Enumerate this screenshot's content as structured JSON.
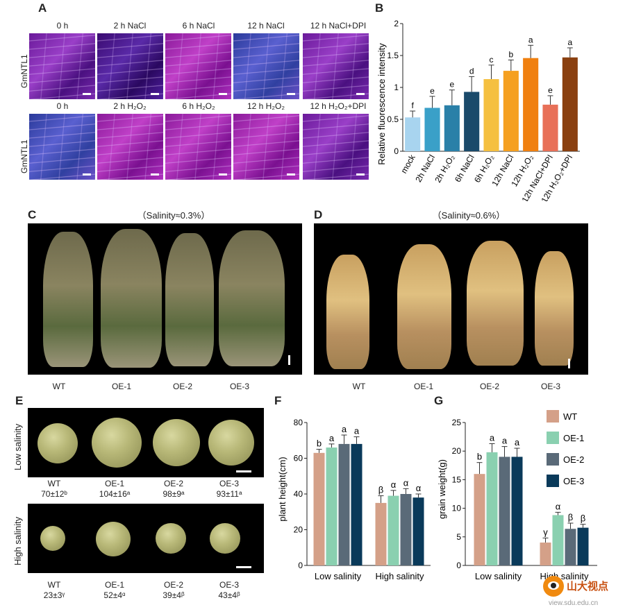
{
  "panels": {
    "A": "A",
    "B": "B",
    "C": "C",
    "D": "D",
    "E": "E",
    "F": "F",
    "G": "G"
  },
  "panelA": {
    "row_label": "GmNTL1",
    "row1_titles": [
      "0 h",
      "2 h NaCl",
      "6 h NaCl",
      "12 h NaCl",
      "12 h NaCl+DPI"
    ],
    "row2_titles": [
      "0 h",
      "2 h H₂O₂",
      "6 h H₂O₂",
      "12 h H₂O₂",
      "12 h H₂O₂+DPI"
    ]
  },
  "panelC": {
    "title": "（Salinity≈0.3%）",
    "labels": [
      "WT",
      "OE-1",
      "OE-2",
      "OE-3"
    ]
  },
  "panelD": {
    "title": "（Salinity≈0.6%）",
    "labels": [
      "WT",
      "OE-1",
      "OE-2",
      "OE-3"
    ]
  },
  "panelE": {
    "low_label": "Low salinity",
    "high_label": "High salinity",
    "low": [
      {
        "name": "WT",
        "value": "70±12ᵇ"
      },
      {
        "name": "OE-1",
        "value": "104±16ᵃ"
      },
      {
        "name": "OE-2",
        "value": "98±9ᵃ"
      },
      {
        "name": "OE-3",
        "value": "93±11ᵃ"
      }
    ],
    "high": [
      {
        "name": "WT",
        "value": "23±3ᵞ"
      },
      {
        "name": "OE-1",
        "value": "52±4ᵅ"
      },
      {
        "name": "OE-2",
        "value": "39±4ᵝ"
      },
      {
        "name": "OE-3",
        "value": "43±4ᵝ"
      }
    ]
  },
  "watermark": {
    "text": "山大视点",
    "url": "view.sdu.edu.cn"
  },
  "chart_data": [
    {
      "id": "B",
      "type": "bar",
      "ylabel": "Relative fluorescence intensity",
      "ylim": [
        0,
        2
      ],
      "yticks": [
        0,
        0.5,
        1,
        1.5,
        2
      ],
      "categories": [
        "mock",
        "2h NaCl",
        "2h H₂O₂",
        "6h NaCl",
        "6h H₂O₂",
        "12h NaCl",
        "12h H₂O₂",
        "12h NaCl+DPI",
        "12h H₂O₂+DPI"
      ],
      "values": [
        0.53,
        0.68,
        0.72,
        0.93,
        1.13,
        1.26,
        1.46,
        0.73,
        1.47
      ],
      "errors": [
        0.1,
        0.18,
        0.24,
        0.24,
        0.22,
        0.17,
        0.2,
        0.14,
        0.15
      ],
      "letters": [
        "f",
        "e",
        "e",
        "d",
        "c",
        "b",
        "a",
        "e",
        "a"
      ],
      "colors": [
        "#a8d4ef",
        "#3aa0c8",
        "#2a80a8",
        "#1a4a6a",
        "#f5c040",
        "#f5a020",
        "#f08010",
        "#e87058",
        "#8a4010"
      ]
    },
    {
      "id": "F",
      "type": "bar",
      "ylabel": "plant height(cm)",
      "ylim": [
        0,
        80
      ],
      "yticks": [
        0,
        20,
        40,
        60,
        80
      ],
      "categories": [
        "Low salinity",
        "High salinity"
      ],
      "series": [
        {
          "name": "WT",
          "values": [
            63,
            35
          ],
          "errors": [
            2,
            4
          ],
          "letters": [
            "b",
            "β"
          ],
          "color": "#d4a088"
        },
        {
          "name": "OE-1",
          "values": [
            66,
            39
          ],
          "errors": [
            2,
            3
          ],
          "letters": [
            "a",
            "α"
          ],
          "color": "#8ad0b0"
        },
        {
          "name": "OE-2",
          "values": [
            68,
            40
          ],
          "errors": [
            5,
            3
          ],
          "letters": [
            "a",
            "α"
          ],
          "color": "#5a6a78"
        },
        {
          "name": "OE-3",
          "values": [
            68,
            38
          ],
          "errors": [
            4,
            2
          ],
          "letters": [
            "a",
            "α"
          ],
          "color": "#0a3a5a"
        }
      ]
    },
    {
      "id": "G",
      "type": "bar",
      "ylabel": "grain weight(g)",
      "ylim": [
        0,
        25
      ],
      "yticks": [
        0,
        5,
        10,
        15,
        20,
        25
      ],
      "categories": [
        "Low salinity",
        "High salinity"
      ],
      "legend": [
        "WT",
        "OE-1",
        "OE-2",
        "OE-3"
      ],
      "series": [
        {
          "name": "WT",
          "values": [
            16,
            4
          ],
          "errors": [
            2,
            0.8
          ],
          "letters": [
            "b",
            "γ"
          ],
          "color": "#d4a088"
        },
        {
          "name": "OE-1",
          "values": [
            19.8,
            8.8
          ],
          "errors": [
            1.5,
            0.5
          ],
          "letters": [
            "a",
            "α"
          ],
          "color": "#8ad0b0"
        },
        {
          "name": "OE-2",
          "values": [
            19,
            6.4
          ],
          "errors": [
            1.8,
            1.0
          ],
          "letters": [
            "a",
            "β"
          ],
          "color": "#5a6a78"
        },
        {
          "name": "OE-3",
          "values": [
            19,
            6.6
          ],
          "errors": [
            1.5,
            0.6
          ],
          "letters": [
            "a",
            "β"
          ],
          "color": "#0a3a5a"
        }
      ]
    }
  ]
}
